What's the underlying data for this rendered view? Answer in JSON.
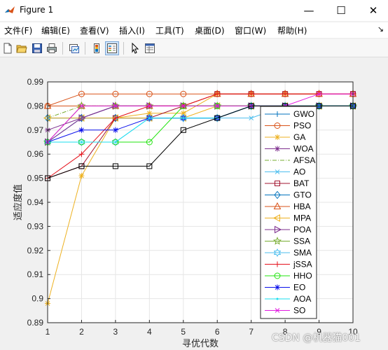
{
  "window": {
    "title": "Figure 1",
    "minimize_glyph": "—",
    "maximize_glyph": "☐",
    "close_glyph": "✕"
  },
  "menu": {
    "items": [
      "文件(F)",
      "编辑(E)",
      "查看(V)",
      "插入(I)",
      "工具(T)",
      "桌面(D)",
      "窗口(W)",
      "帮助(H)"
    ],
    "dock_glyph": "↘"
  },
  "toolbar": {
    "icons": [
      "new-figure-icon",
      "open-file-icon",
      "save-icon",
      "print-icon",
      "link-plot-icon",
      "insert-colorbar-icon",
      "insert-legend-icon",
      "edit-plot-pointer-icon",
      "property-inspector-icon"
    ]
  },
  "watermark": "CSDN @机器猫001",
  "chart_data": {
    "type": "line",
    "xlabel": "寻优代数",
    "ylabel": "适应度值",
    "xlim": [
      1,
      10
    ],
    "ylim": [
      0.89,
      0.99
    ],
    "xticks": [
      "1",
      "2",
      "3",
      "4",
      "5",
      "6",
      "7",
      "8",
      "9",
      "10"
    ],
    "yticks": [
      "0.89",
      "0.9",
      "0.91",
      "0.92",
      "0.93",
      "0.94",
      "0.95",
      "0.96",
      "0.97",
      "0.98",
      "0.99"
    ],
    "grid": true,
    "legend_position": "right",
    "x": [
      1,
      2,
      3,
      4,
      5,
      6,
      7,
      8,
      9,
      10
    ],
    "series": [
      {
        "name": "GWO",
        "color": "#0072BD",
        "marker": "plus",
        "dash": "",
        "values": [
          0.965,
          0.975,
          0.98,
          0.98,
          0.98,
          0.98,
          0.98,
          0.98,
          0.98,
          0.98
        ]
      },
      {
        "name": "PSO",
        "color": "#D95319",
        "marker": "circle",
        "dash": "",
        "values": [
          0.98,
          0.985,
          0.985,
          0.985,
          0.985,
          0.985,
          0.985,
          0.985,
          0.985,
          0.985
        ]
      },
      {
        "name": "GA",
        "color": "#EDB120",
        "marker": "asterisk",
        "dash": "",
        "values": [
          0.898,
          0.951,
          0.975,
          0.977,
          0.977,
          0.985,
          0.985,
          0.985,
          0.985,
          0.985
        ]
      },
      {
        "name": "WOA",
        "color": "#7E2F8E",
        "marker": "asterisk",
        "dash": "",
        "values": [
          0.97,
          0.975,
          0.98,
          0.98,
          0.98,
          0.98,
          0.98,
          0.98,
          0.98,
          0.98
        ]
      },
      {
        "name": "AFSA",
        "color": "#77AC30",
        "marker": "none",
        "dash": "6,2,1,2",
        "values": [
          0.975,
          0.98,
          0.98,
          0.98,
          0.98,
          0.98,
          0.98,
          0.98,
          0.98,
          0.98
        ]
      },
      {
        "name": "AO",
        "color": "#4DBEEE",
        "marker": "x",
        "dash": "",
        "values": [
          0.975,
          0.975,
          0.975,
          0.975,
          0.975,
          0.975,
          0.975,
          0.98,
          0.98,
          0.98
        ]
      },
      {
        "name": "BAT",
        "color": "#A2142F",
        "marker": "square",
        "dash": "",
        "values": [
          0.95,
          0.955,
          0.975,
          0.975,
          0.98,
          0.985,
          0.985,
          0.985,
          0.985,
          0.985
        ]
      },
      {
        "name": "GTO",
        "color": "#0072BD",
        "marker": "diamond",
        "dash": "",
        "values": [
          0.975,
          0.975,
          0.975,
          0.975,
          0.975,
          0.975,
          0.98,
          0.98,
          0.98,
          0.98
        ]
      },
      {
        "name": "HBA",
        "color": "#D95319",
        "marker": "triangle-up",
        "dash": "",
        "values": [
          0.98,
          0.98,
          0.98,
          0.98,
          0.98,
          0.985,
          0.985,
          0.985,
          0.985,
          0.985
        ]
      },
      {
        "name": "MPA",
        "color": "#EDB120",
        "marker": "triangle-left",
        "dash": "",
        "values": [
          0.975,
          0.975,
          0.975,
          0.975,
          0.975,
          0.98,
          0.98,
          0.98,
          0.98,
          0.98
        ]
      },
      {
        "name": "POA",
        "color": "#7E2F8E",
        "marker": "triangle-right",
        "dash": "",
        "values": [
          0.965,
          0.975,
          0.98,
          0.98,
          0.98,
          0.98,
          0.98,
          0.98,
          0.98,
          0.98
        ]
      },
      {
        "name": "SSA",
        "color": "#77AC30",
        "marker": "pentagram",
        "dash": "",
        "values": [
          0.965,
          0.98,
          0.98,
          0.98,
          0.98,
          0.98,
          0.98,
          0.98,
          0.98,
          0.98
        ]
      },
      {
        "name": "SMA",
        "color": "#4DBEEE",
        "marker": "hexagram",
        "dash": "",
        "values": [
          0.965,
          0.965,
          0.965,
          0.975,
          0.975,
          0.975,
          0.98,
          0.98,
          0.98,
          0.98
        ]
      },
      {
        "name": "jSSA",
        "color": "#E4101A",
        "marker": "plus",
        "dash": "",
        "values": [
          0.95,
          0.96,
          0.975,
          0.98,
          0.98,
          0.985,
          0.985,
          0.985,
          0.985,
          0.985
        ]
      },
      {
        "name": "HHO",
        "color": "#22E40F",
        "marker": "circle",
        "dash": "",
        "values": [
          0.965,
          0.965,
          0.965,
          0.965,
          0.98,
          0.98,
          0.98,
          0.98,
          0.98,
          0.98
        ]
      },
      {
        "name": "EO",
        "color": "#0A10EB",
        "marker": "asterisk",
        "dash": "",
        "values": [
          0.965,
          0.97,
          0.97,
          0.975,
          0.975,
          0.975,
          0.98,
          0.98,
          0.98,
          0.98
        ]
      },
      {
        "name": "AOA",
        "color": "#1ADFEF",
        "marker": "point",
        "dash": "",
        "values": [
          0.965,
          0.965,
          0.965,
          0.975,
          0.975,
          0.975,
          0.98,
          0.98,
          0.98,
          0.98
        ]
      },
      {
        "name": "SO",
        "color": "#E21AE0",
        "marker": "x",
        "dash": "",
        "values": [
          0.965,
          0.98,
          0.98,
          0.98,
          0.98,
          0.98,
          0.98,
          0.98,
          0.985,
          0.985
        ]
      },
      {
        "name": "",
        "color": "#000000",
        "marker": "square",
        "dash": "",
        "values": [
          0.95,
          0.955,
          0.955,
          0.955,
          0.97,
          0.975,
          0.98,
          0.98,
          0.98,
          0.98
        ]
      }
    ]
  }
}
